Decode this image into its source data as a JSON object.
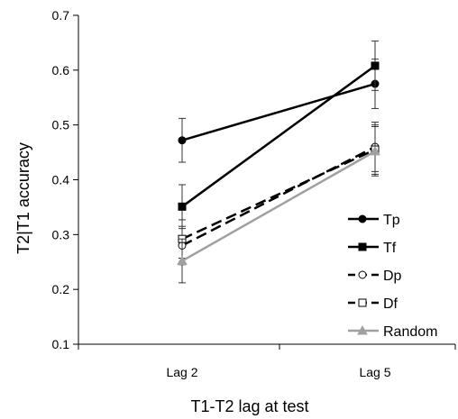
{
  "chart_data": {
    "type": "line",
    "xlabel": "T1-T2 lag at test",
    "ylabel": "T2|T1 accuracy",
    "categories": [
      "Lag 2",
      "Lag 5"
    ],
    "ylim": [
      0.1,
      0.7
    ],
    "yticks": [
      "0.1",
      "0.2",
      "0.3",
      "0.4",
      "0.5",
      "0.6",
      "0.7"
    ],
    "grid": false,
    "legend_position": "right",
    "series": [
      {
        "name": "Tp",
        "values": [
          0.472,
          0.575
        ],
        "errors": [
          0.04,
          0.045
        ],
        "color": "#000000",
        "marker": "filled-circle",
        "dash": "solid"
      },
      {
        "name": "Tf",
        "values": [
          0.351,
          0.608
        ],
        "errors": [
          0.04,
          0.045
        ],
        "color": "#000000",
        "marker": "filled-square",
        "dash": "solid"
      },
      {
        "name": "Dp",
        "values": [
          0.28,
          0.46
        ],
        "errors": [
          0.035,
          0.045
        ],
        "color": "#000000",
        "marker": "open-circle",
        "dash": "dashed"
      },
      {
        "name": "Df",
        "values": [
          0.292,
          0.455
        ],
        "errors": [
          0.035,
          0.045
        ],
        "color": "#000000",
        "marker": "open-square",
        "dash": "dashed"
      },
      {
        "name": "Random",
        "values": [
          0.252,
          0.452
        ],
        "errors": [
          0.04,
          0.045
        ],
        "color": "#a0a0a0",
        "marker": "filled-triangle",
        "dash": "solid"
      }
    ]
  }
}
